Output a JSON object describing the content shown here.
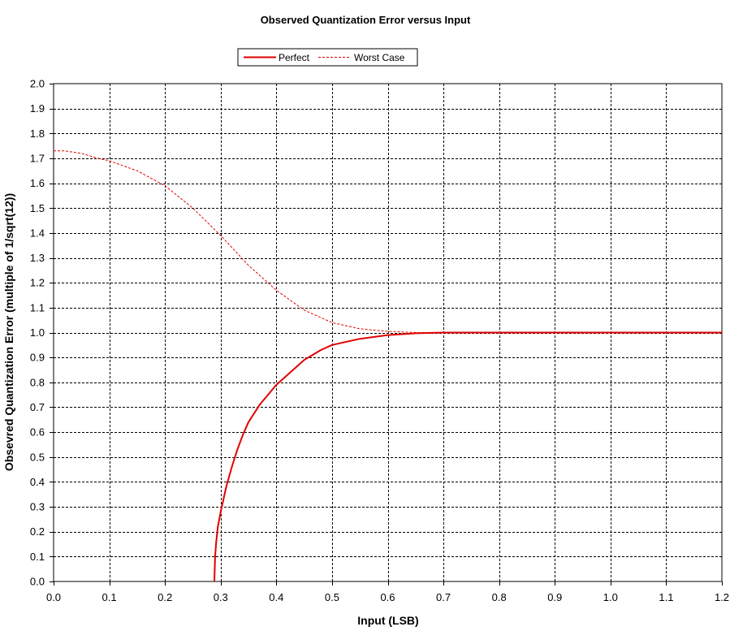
{
  "chart_data": {
    "type": "line",
    "title": "Observed Quantization Error versus Input",
    "xlabel": "Input (LSB)",
    "ylabel": "Obsevred Quantization Error (multiple of 1/sqrt(12))",
    "xlim": [
      0.0,
      1.2
    ],
    "ylim": [
      0.0,
      2.0
    ],
    "x_ticks": [
      "0.0",
      "0.1",
      "0.2",
      "0.3",
      "0.4",
      "0.5",
      "0.6",
      "0.7",
      "0.8",
      "0.9",
      "1.0",
      "1.1",
      "1.2"
    ],
    "y_ticks": [
      "0.0",
      "0.1",
      "0.2",
      "0.3",
      "0.4",
      "0.5",
      "0.6",
      "0.7",
      "0.8",
      "0.9",
      "1.0",
      "1.1",
      "1.2",
      "1.3",
      "1.4",
      "1.5",
      "1.6",
      "1.7",
      "1.8",
      "1.9",
      "2.0"
    ],
    "grid": true,
    "legend_position": "top-center",
    "series": [
      {
        "name": "Perfect",
        "color": "#e00000",
        "style": "solid",
        "x": [
          0.2887,
          0.29,
          0.292,
          0.295,
          0.3,
          0.31,
          0.32,
          0.33,
          0.34,
          0.35,
          0.37,
          0.4,
          0.43,
          0.45,
          0.48,
          0.5,
          0.55,
          0.6,
          0.65,
          0.7,
          0.8,
          0.9,
          1.0,
          1.1,
          1.2
        ],
        "y": [
          0.0,
          0.1,
          0.16,
          0.22,
          0.28,
          0.38,
          0.46,
          0.53,
          0.59,
          0.64,
          0.71,
          0.79,
          0.85,
          0.89,
          0.93,
          0.95,
          0.975,
          0.99,
          0.997,
          1.0,
          1.0,
          1.0,
          1.0,
          1.0,
          1.0
        ]
      },
      {
        "name": "Worst Case",
        "color": "#e00000",
        "style": "dashed",
        "x": [
          0.0,
          0.02,
          0.05,
          0.08,
          0.1,
          0.15,
          0.2,
          0.25,
          0.3,
          0.35,
          0.4,
          0.45,
          0.5,
          0.55,
          0.6,
          0.65,
          0.7,
          0.8,
          0.9,
          1.0,
          1.1,
          1.2
        ],
        "y": [
          1.73,
          1.73,
          1.72,
          1.7,
          1.69,
          1.65,
          1.59,
          1.5,
          1.39,
          1.27,
          1.17,
          1.09,
          1.04,
          1.015,
          1.005,
          1.0,
          1.0,
          1.0,
          1.0,
          1.0,
          1.0,
          1.0
        ]
      }
    ]
  }
}
